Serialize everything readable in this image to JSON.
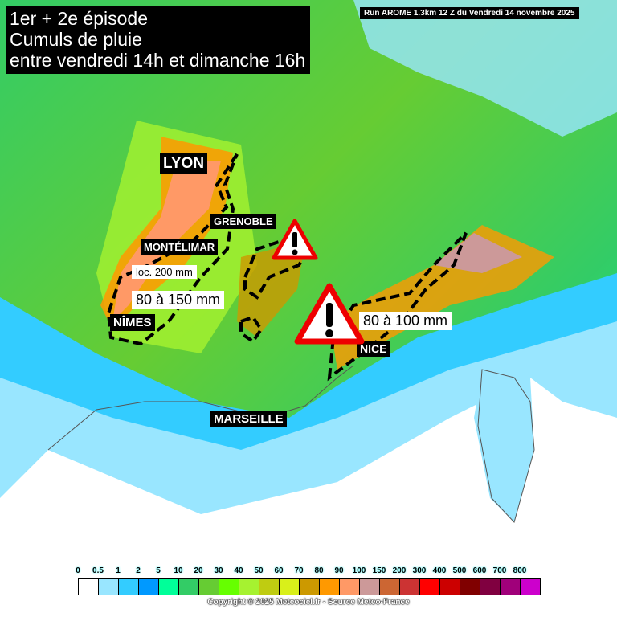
{
  "title": {
    "lines": [
      "1er + 2e épisode",
      "Cumuls de pluie",
      "entre vendredi 14h et dimanche 16h"
    ]
  },
  "run_info": "Run AROME 1.3km 12 Z du Vendredi 14 novembre 2025",
  "cities": {
    "lyon": "LYON",
    "grenoble": "GRENOBLE",
    "montelimar": "MONTÉLIMAR",
    "nimes": "NÎMES",
    "marseille": "MARSEILLE",
    "nice": "NICE"
  },
  "annotations": {
    "local_max": "loc. 200 mm",
    "range_west": "80 à 150 mm",
    "range_east": "80 à 100 mm"
  },
  "icons": [
    "warning-icon",
    "warning-icon"
  ],
  "legend": {
    "labels": [
      "0",
      "0.5",
      "1",
      "2",
      "5",
      "10",
      "20",
      "30",
      "40",
      "50",
      "60",
      "70",
      "80",
      "90",
      "100",
      "150",
      "200",
      "300",
      "400",
      "500",
      "600",
      "700",
      "800"
    ],
    "colors": [
      "#ffffff",
      "#99e6ff",
      "#33ccff",
      "#0099ff",
      "#00ff99",
      "#33cc66",
      "#66cc33",
      "#66ff00",
      "#a6f230",
      "#bfcc11",
      "#d9f01a",
      "#cc9900",
      "#ff9900",
      "#ff9966",
      "#cc9999",
      "#cc6633",
      "#cc3333",
      "#ff0000",
      "#cc0000",
      "#800000",
      "#800040",
      "#a0007a",
      "#cc00cc"
    ]
  },
  "copyright": "Copyright © 2025 Meteociel.fr - Source Meteo-France"
}
